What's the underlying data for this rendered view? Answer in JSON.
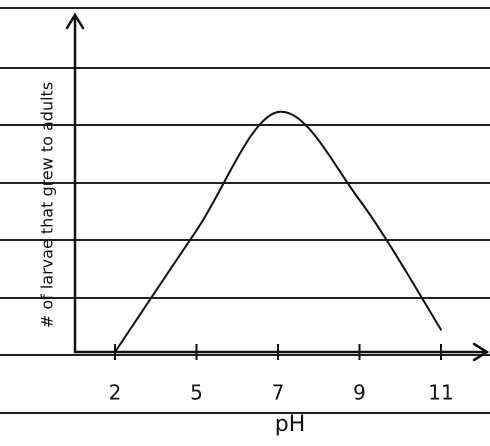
{
  "chart_data": {
    "type": "line",
    "xlabel": "pH",
    "ylabel": "# of larvae that grew to adults",
    "categories": [
      "2",
      "5",
      "7",
      "9",
      "11"
    ],
    "values": [
      0,
      3.8,
      7.5,
      4.75,
      0.7
    ],
    "color": "#111111",
    "ylim": [
      0,
      10
    ]
  }
}
